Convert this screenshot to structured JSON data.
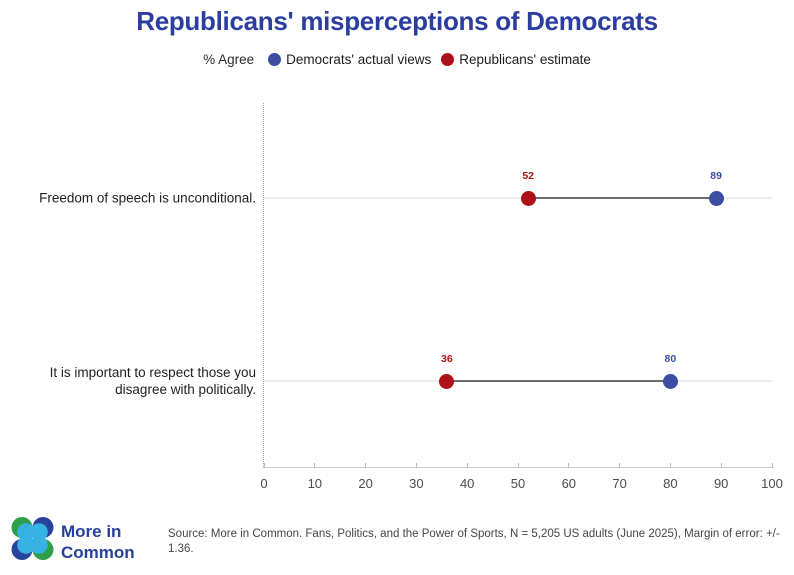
{
  "title": "Republicans' misperceptions of Democrats",
  "legend": {
    "prefix": "% Agree",
    "items": [
      {
        "label": "Democrats' actual views",
        "color": "#3b4ea3"
      },
      {
        "label": "Republicans' estimate",
        "color": "#ae1117"
      }
    ]
  },
  "chart_data": {
    "type": "dumbbell",
    "title": "Republicans' misperceptions of Democrats",
    "xlabel": "% Agree",
    "xlim": [
      0,
      100
    ],
    "ticks": [
      0,
      10,
      20,
      30,
      40,
      50,
      60,
      70,
      80,
      90,
      100
    ],
    "grid": false,
    "legend_position": "top",
    "categories": [
      "Freedom of speech is unconditional.",
      "It is important to respect those you disagree with politically."
    ],
    "series": [
      {
        "name": "Democrats' actual views",
        "color": "#3b4ea3",
        "values": [
          89,
          80
        ]
      },
      {
        "name": "Republicans' estimate",
        "color": "#ae1117",
        "values": [
          52,
          36
        ]
      }
    ]
  },
  "footer": {
    "brand_line1": "More in",
    "brand_line2": "Common",
    "source": "Source: More in Common. Fans, Politics, and the Power of Sports, N = 5,205 US adults (June 2025), Margin of error: +/- 1.36."
  },
  "colors": {
    "title_blue": "#2b3d9e",
    "brand_blue": "#254198",
    "democrat_blue": "#3b4ea3",
    "republican_red": "#ae1117",
    "logo_green": "#2f9e49",
    "logo_navy": "#27449c",
    "logo_cyan": "#37b3e3"
  }
}
